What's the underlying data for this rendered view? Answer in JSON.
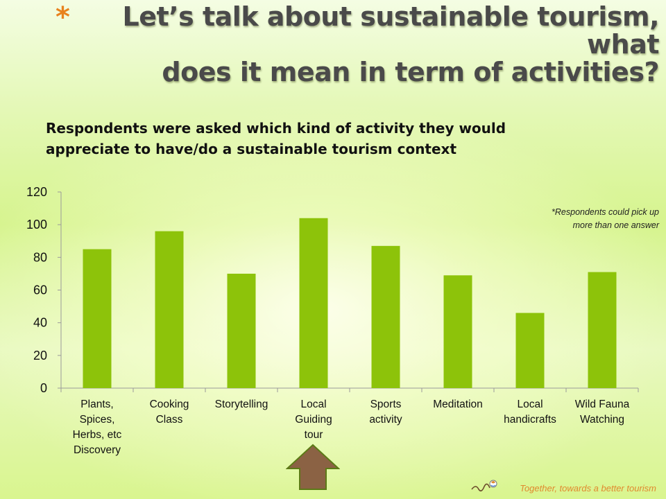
{
  "slide": {
    "bullet": "*",
    "title_line1": "Let’s talk about sustainable tourism, what",
    "title_line2": "does it mean in term of activities?",
    "subtitle_line1": "Respondents were asked which kind of activity they would",
    "subtitle_line2": "appreciate to have/do a sustainable tourism context",
    "note_line1": "*Respondents could pick up",
    "note_line2": "more than one answer",
    "footer": "Together, towards a better tourism"
  },
  "colors": {
    "bar": "#8dc30a",
    "arrow_fill": "#8b6244",
    "arrow_stroke": "#5c7a16",
    "bullet": "#e8821e",
    "footer": "#e08a2e"
  },
  "chart_data": {
    "type": "bar",
    "categories": [
      [
        "Plants,",
        "Spices,",
        "Herbs, etc",
        "Discovery"
      ],
      [
        "Cooking",
        "Class"
      ],
      [
        "Storytelling"
      ],
      [
        "Local",
        "Guiding",
        "tour"
      ],
      [
        "Sports",
        "activity"
      ],
      [
        "Meditation"
      ],
      [
        "Local",
        "handicrafts"
      ],
      [
        "Wild Fauna",
        "Watching"
      ]
    ],
    "values": [
      85,
      96,
      70,
      104,
      87,
      69,
      46,
      71
    ],
    "ylim": [
      0,
      120
    ],
    "yticks": [
      0,
      20,
      40,
      60,
      80,
      100,
      120
    ],
    "grid": false,
    "highlight_index": 3
  }
}
